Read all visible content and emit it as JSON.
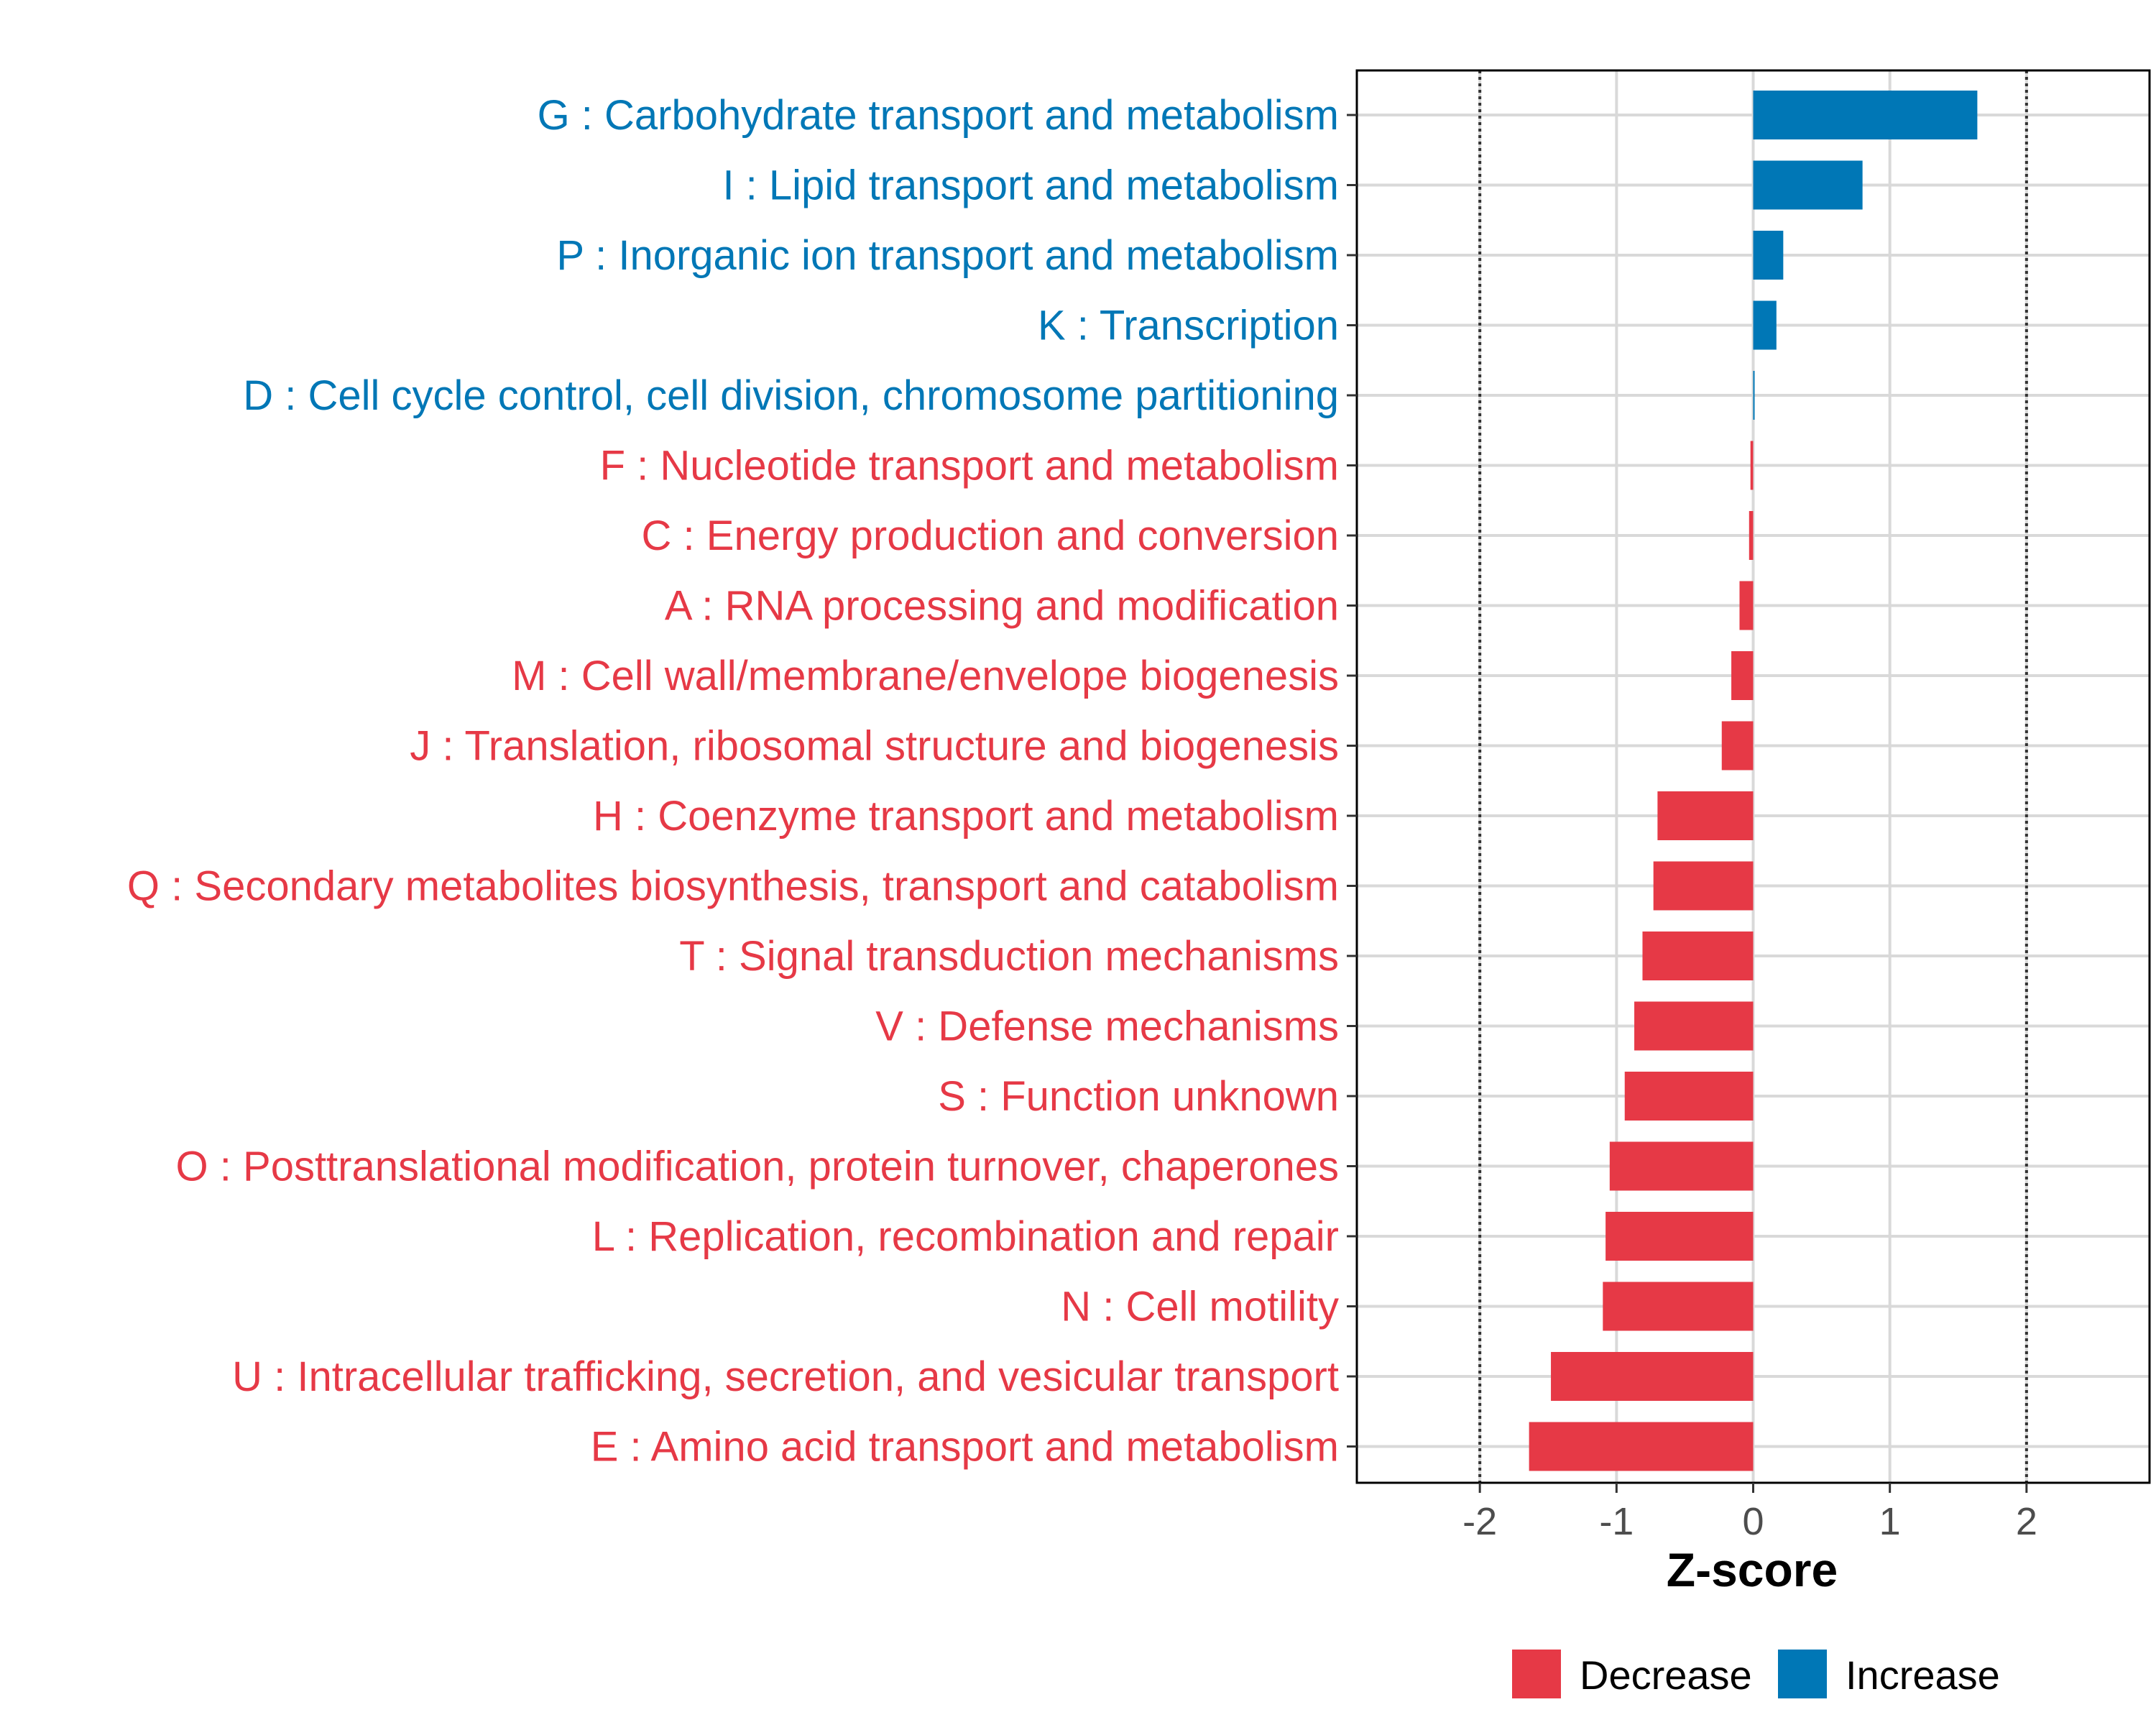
{
  "chart_data": {
    "type": "bar",
    "orientation": "horizontal",
    "xlabel": "Z-score",
    "ylabel": "",
    "xlim": [
      -2.9,
      2.9
    ],
    "xticks": [
      -2,
      -1,
      0,
      1,
      2
    ],
    "xtick_labels": [
      "-2",
      "-1",
      "0",
      "1",
      "2"
    ],
    "reference_lines": [
      -2,
      2
    ],
    "grid": true,
    "legend_position": "bottom",
    "colors": {
      "Decrease": "#E63946",
      "Increase": "#0077B6"
    },
    "legend": [
      {
        "label": "Decrease",
        "color": "#E63946"
      },
      {
        "label": "Increase",
        "color": "#0077B6"
      }
    ],
    "categories": [
      "G : Carbohydrate transport and metabolism",
      "I : Lipid transport and metabolism",
      "P : Inorganic ion transport and metabolism",
      "K : Transcription",
      "D : Cell cycle control, cell division, chromosome partitioning",
      "F : Nucleotide transport and metabolism",
      "C : Energy production and conversion",
      "A : RNA processing and modification",
      "M : Cell wall/membrane/envelope biogenesis",
      "J : Translation, ribosomal structure and biogenesis",
      "H : Coenzyme transport and metabolism",
      "Q : Secondary metabolites biosynthesis, transport and catabolism",
      "T : Signal transduction mechanisms",
      "V : Defense mechanisms",
      "S : Function unknown",
      "O : Posttranslational modification, protein turnover, chaperones",
      "L : Replication, recombination and repair",
      "N : Cell motility",
      "U : Intracellular trafficking, secretion, and vesicular transport",
      "E : Amino acid transport and metabolism"
    ],
    "values": [
      1.64,
      0.8,
      0.22,
      0.17,
      0.01,
      -0.02,
      -0.03,
      -0.1,
      -0.16,
      -0.23,
      -0.7,
      -0.73,
      -0.81,
      -0.87,
      -0.94,
      -1.05,
      -1.08,
      -1.1,
      -1.48,
      -1.64
    ],
    "groups": [
      "Increase",
      "Increase",
      "Increase",
      "Increase",
      "Increase",
      "Decrease",
      "Decrease",
      "Decrease",
      "Decrease",
      "Decrease",
      "Decrease",
      "Decrease",
      "Decrease",
      "Decrease",
      "Decrease",
      "Decrease",
      "Decrease",
      "Decrease",
      "Decrease",
      "Decrease"
    ]
  }
}
